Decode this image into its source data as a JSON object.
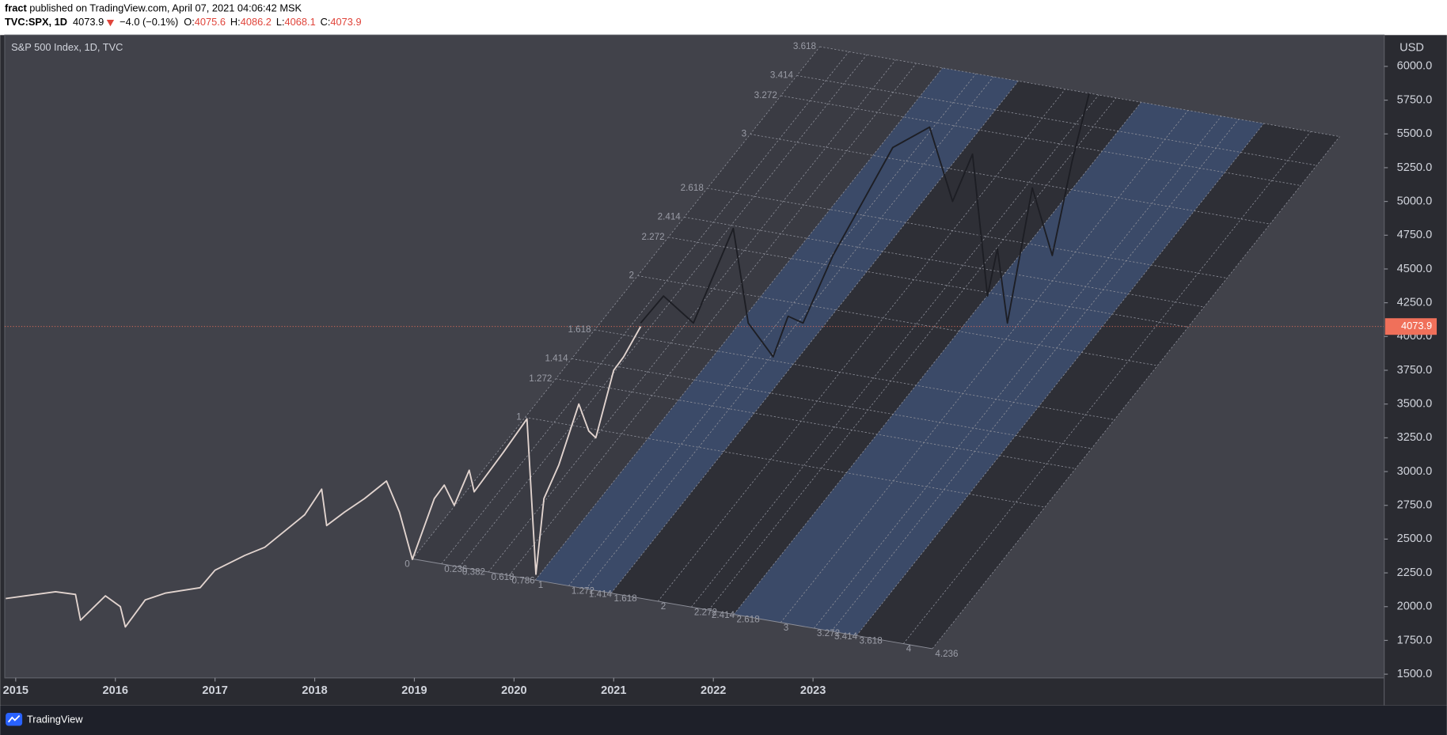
{
  "header": {
    "author": "fract",
    "published": "published on TradingView.com, April 07, 2021 04:06:42 MSK",
    "symbol": "TVC:SPX, 1D",
    "price": "4073.9",
    "change": "−4.0 (−0.1%)",
    "open_label": "O:",
    "open": "4075.6",
    "high_label": "H:",
    "high": "4086.2",
    "low_label": "L:",
    "low": "4068.1",
    "close_label": "C:",
    "close": "4073.9"
  },
  "chart_data": {
    "type": "line",
    "title": "S&P 500 Index, 1D, TVC",
    "y_axis_label": "USD",
    "xlim": [
      2014.89,
      2028.73
    ],
    "xticks": [
      2015,
      2016,
      2017,
      2018,
      2019,
      2020,
      2021,
      2022,
      2023
    ],
    "ylim": [
      1473,
      6232
    ],
    "yticks": [
      {
        "value": 1500,
        "label": "1500.0"
      },
      {
        "value": 1750,
        "label": "1750.0"
      },
      {
        "value": 2000,
        "label": "2000.0"
      },
      {
        "value": 2250,
        "label": "2250.0"
      },
      {
        "value": 2500,
        "label": "2500.0"
      },
      {
        "value": 2750,
        "label": "2750.0"
      },
      {
        "value": 3000,
        "label": "3000.0"
      },
      {
        "value": 3250,
        "label": "3250.0"
      },
      {
        "value": 3500,
        "label": "3500.0"
      },
      {
        "value": 3750,
        "label": "3750.0"
      },
      {
        "value": 4000,
        "label": "4000.0"
      },
      {
        "value": 4250,
        "label": "4250.0"
      },
      {
        "value": 4500,
        "label": "4500.0"
      },
      {
        "value": 4750,
        "label": "4750.0"
      },
      {
        "value": 5000,
        "label": "5000.0"
      },
      {
        "value": 5250,
        "label": "5250.0"
      },
      {
        "value": 5500,
        "label": "5500.0"
      },
      {
        "value": 5750,
        "label": "5750.0"
      },
      {
        "value": 6000,
        "label": "6000.0"
      }
    ],
    "grid": false,
    "last_price": 4073.9,
    "last_price_color": "#f0705a",
    "series": [
      {
        "color": "#e2d4cf",
        "x": [
          2014.9,
          2015.1,
          2015.4,
          2015.6,
          2015.65,
          2015.9,
          2016.05,
          2016.1,
          2016.3,
          2016.5,
          2016.85,
          2017.0,
          2017.3,
          2017.5,
          2017.9,
          2018.07,
          2018.12,
          2018.3,
          2018.5,
          2018.72,
          2018.85,
          2018.98,
          2019.2,
          2019.3,
          2019.4,
          2019.55,
          2019.6,
          2019.9,
          2020.13,
          2020.22,
          2020.3,
          2020.45,
          2020.65,
          2020.75,
          2020.82,
          2021.0,
          2021.1,
          2021.27
        ],
        "values": [
          2060,
          2080,
          2110,
          2090,
          1900,
          2080,
          2000,
          1850,
          2050,
          2100,
          2140,
          2270,
          2380,
          2440,
          2680,
          2870,
          2600,
          2700,
          2800,
          2930,
          2700,
          2350,
          2800,
          2900,
          2750,
          3010,
          2850,
          3150,
          3390,
          2240,
          2800,
          3050,
          3500,
          3300,
          3250,
          3750,
          3850,
          4073.9
        ]
      },
      {
        "color": "#1d1e24",
        "x": [
          2021.27,
          2021.5,
          2021.8,
          2022.0,
          2022.2,
          2022.35,
          2022.6,
          2022.75,
          2022.9,
          2023.2,
          2023.5,
          2023.8,
          2024.17,
          2024.4,
          2024.6,
          2024.75,
          2024.85,
          2024.95,
          2025.2,
          2025.4,
          2025.6,
          2025.77
        ],
        "values": [
          4100,
          4300,
          4100,
          4450,
          4800,
          4100,
          3850,
          4150,
          4100,
          4600,
          5000,
          5400,
          5550,
          5000,
          5350,
          4300,
          4650,
          4100,
          5100,
          4600,
          5300,
          5800
        ]
      }
    ],
    "fib_channel": {
      "width_levels": [
        0,
        0.236,
        0.382,
        0.618,
        0.786,
        1,
        1.272,
        1.414,
        1.618,
        2,
        2.272,
        2.414,
        2.618,
        3,
        3.272,
        3.414,
        3.618,
        4,
        4.236
      ],
      "height_levels": [
        1,
        1.272,
        1.414,
        1.618,
        2,
        2.272,
        2.414,
        2.618,
        3,
        3.272,
        3.414,
        3.618
      ],
      "bands": [
        {
          "from": 0,
          "to": 1,
          "color": "#3a3b43"
        },
        {
          "from": 1,
          "to": 1.618,
          "color": "#3b4a68"
        },
        {
          "from": 1.618,
          "to": 2.618,
          "color": "#2e2f36"
        },
        {
          "from": 2.618,
          "to": 3.618,
          "color": "#3b4a68"
        },
        {
          "from": 3.618,
          "to": 4.236,
          "color": "#2e2f36"
        }
      ]
    }
  },
  "footer": {
    "brand": "TradingView"
  }
}
